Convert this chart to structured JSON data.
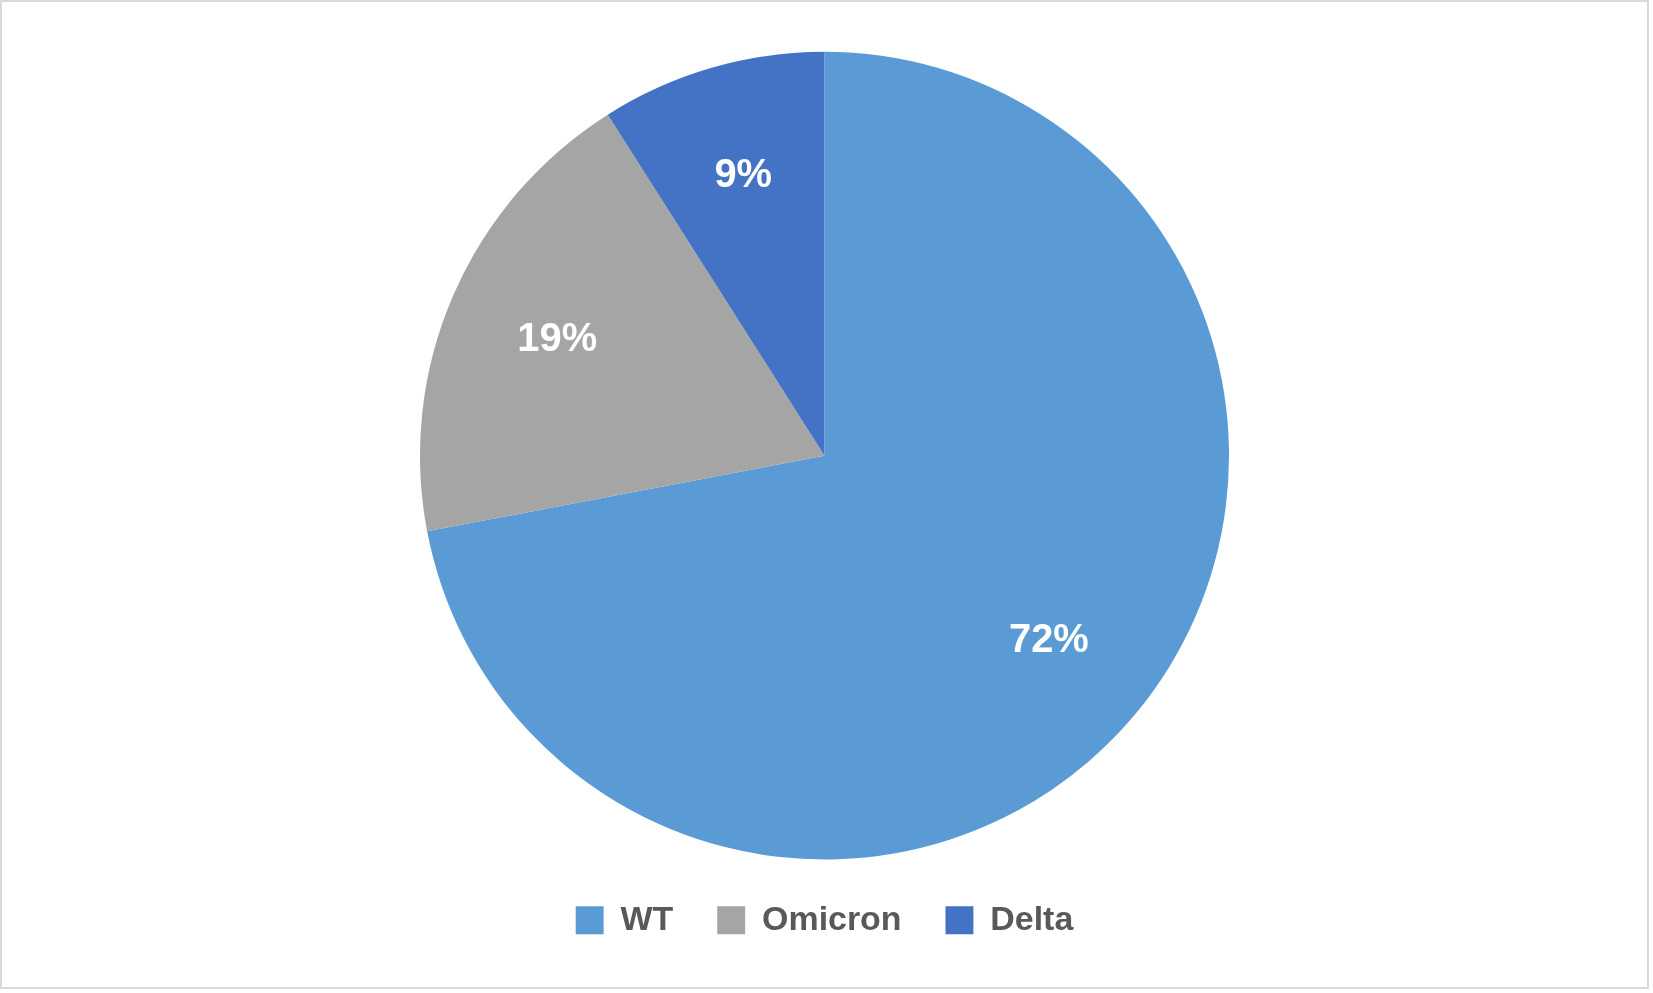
{
  "chart_data": {
    "type": "pie",
    "categories": [
      "WT",
      "Omicron",
      "Delta"
    ],
    "values": [
      72,
      19,
      9
    ],
    "colors": [
      "#5b9bd5",
      "#a5a5a5",
      "#4472c4"
    ],
    "value_labels": [
      "72%",
      "19%",
      "9%"
    ],
    "legend": "bottom"
  }
}
